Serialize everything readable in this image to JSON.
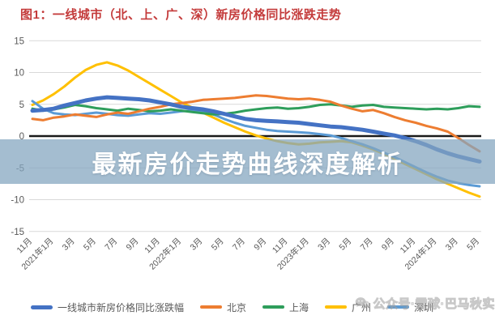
{
  "title": "图1：一线城市（北、上、广、深）新房价格同比涨跌走势",
  "banner": {
    "text": "最新房价走势曲线深度解析"
  },
  "watermark": {
    "icon": "wechat-icon",
    "text": "公众号·雪球·巴马秋实"
  },
  "colors": {
    "title_red": "#c43b3b",
    "banner_overlay": "rgba(132,166,192,0.74)",
    "grid": "#d9d9d9",
    "zero_line": "#1a1a1a",
    "axis_text": "#595959"
  },
  "chart_data": {
    "type": "line",
    "title": "图1：一线城市（北、上、广、深）新房价格同比涨跌走势",
    "xlabel": "",
    "ylabel": "",
    "ylim": [
      -15,
      15
    ],
    "y_ticks": [
      15,
      10,
      5,
      0,
      -5,
      -10,
      -15
    ],
    "grid": true,
    "zero_line": true,
    "legend_position": "bottom",
    "x_tick_labels": [
      "11月",
      "2021年1月",
      "3月",
      "5月",
      "7月",
      "9月",
      "11月",
      "2022年1月",
      "3月",
      "5月",
      "7月",
      "9月",
      "11月",
      "2023年1月",
      "3月",
      "5月",
      "7月",
      "9月",
      "11月",
      "2024年1月",
      "3月",
      "5月"
    ],
    "categories": [
      "2020-11",
      "2020-12",
      "2021-01",
      "2021-02",
      "2021-03",
      "2021-04",
      "2021-05",
      "2021-06",
      "2021-07",
      "2021-08",
      "2021-09",
      "2021-10",
      "2021-11",
      "2021-12",
      "2022-01",
      "2022-02",
      "2022-03",
      "2022-04",
      "2022-05",
      "2022-06",
      "2022-07",
      "2022-08",
      "2022-09",
      "2022-10",
      "2022-11",
      "2022-12",
      "2023-01",
      "2023-02",
      "2023-03",
      "2023-04",
      "2023-05",
      "2023-06",
      "2023-07",
      "2023-08",
      "2023-09",
      "2023-10",
      "2023-11",
      "2023-12",
      "2024-01",
      "2024-02",
      "2024-03",
      "2024-04",
      "2024-05"
    ],
    "series": [
      {
        "name": "一线城市新房价格同比涨跌幅",
        "color": "#4472C4",
        "stroke_width": 5,
        "z": 5,
        "values": [
          4.0,
          4.1,
          4.3,
          4.8,
          5.2,
          5.6,
          5.9,
          6.1,
          6.0,
          5.9,
          5.8,
          5.6,
          5.3,
          5.0,
          4.6,
          4.4,
          4.2,
          3.9,
          3.5,
          3.1,
          2.7,
          2.5,
          2.4,
          2.3,
          2.2,
          2.1,
          1.9,
          1.7,
          1.5,
          1.4,
          1.2,
          1.0,
          0.7,
          0.4,
          0.1,
          -0.3,
          -0.8,
          -1.4,
          -2.1,
          -2.7,
          -3.2,
          -3.6,
          -4.0
        ]
      },
      {
        "name": "北京",
        "color": "#ED7D31",
        "stroke_width": 3,
        "z": 4,
        "values": [
          2.7,
          2.5,
          2.9,
          3.1,
          3.4,
          3.2,
          3.0,
          3.4,
          3.7,
          3.5,
          3.9,
          4.3,
          4.6,
          5.0,
          5.2,
          5.4,
          5.7,
          5.8,
          5.9,
          6.0,
          6.2,
          6.4,
          6.3,
          6.1,
          5.9,
          5.8,
          5.9,
          5.7,
          5.4,
          4.8,
          4.3,
          3.9,
          4.1,
          3.6,
          3.0,
          2.5,
          2.1,
          1.6,
          1.2,
          0.7,
          -0.3,
          -1.4,
          -2.4
        ]
      },
      {
        "name": "上海",
        "color": "#2E9E5B",
        "stroke_width": 3,
        "z": 3,
        "values": [
          4.3,
          4.0,
          4.2,
          4.5,
          4.9,
          4.7,
          4.4,
          4.2,
          4.0,
          4.3,
          4.1,
          3.9,
          4.0,
          4.2,
          4.0,
          3.8,
          3.6,
          3.4,
          3.5,
          3.7,
          4.0,
          4.2,
          4.4,
          4.5,
          4.3,
          4.4,
          4.6,
          4.9,
          5.0,
          4.8,
          4.6,
          4.8,
          4.9,
          4.6,
          4.5,
          4.4,
          4.3,
          4.2,
          4.3,
          4.2,
          4.4,
          4.7,
          4.6
        ]
      },
      {
        "name": "广州",
        "color": "#FFC000",
        "stroke_width": 3,
        "z": 1,
        "values": [
          4.9,
          5.6,
          6.6,
          7.8,
          9.2,
          10.4,
          11.2,
          11.6,
          11.1,
          10.3,
          9.3,
          8.3,
          7.3,
          6.3,
          5.3,
          4.5,
          3.7,
          2.9,
          2.1,
          1.4,
          0.7,
          0.1,
          -0.4,
          -0.8,
          -1.1,
          -1.3,
          -1.2,
          -1.0,
          -0.9,
          -0.8,
          -1.0,
          -1.5,
          -2.1,
          -2.8,
          -3.6,
          -4.4,
          -5.2,
          -6.0,
          -6.8,
          -7.5,
          -8.2,
          -8.9,
          -9.5
        ]
      },
      {
        "name": "深圳",
        "color": "#5B9BD5",
        "stroke_width": 3,
        "z": 2,
        "values": [
          5.5,
          4.3,
          3.6,
          3.4,
          3.3,
          3.5,
          3.7,
          3.5,
          3.3,
          3.2,
          3.4,
          3.6,
          3.5,
          3.7,
          3.9,
          4.0,
          3.8,
          3.4,
          2.7,
          2.1,
          1.6,
          1.3,
          1.0,
          0.8,
          0.7,
          0.6,
          0.5,
          0.3,
          0.1,
          -0.3,
          -0.8,
          -1.3,
          -1.9,
          -2.6,
          -3.3,
          -4.1,
          -4.9,
          -5.7,
          -6.4,
          -7.0,
          -7.4,
          -7.7,
          -7.9
        ]
      }
    ]
  },
  "legend": {
    "items": [
      {
        "label": "一线城市新房价格同比涨跌幅",
        "color": "#4472C4",
        "thick": true
      },
      {
        "label": "北京",
        "color": "#ED7D31",
        "thick": false
      },
      {
        "label": "上海",
        "color": "#2E9E5B",
        "thick": false
      },
      {
        "label": "广州",
        "color": "#FFC000",
        "thick": false
      },
      {
        "label": "深圳",
        "color": "#5B9BD5",
        "thick": false
      }
    ]
  }
}
